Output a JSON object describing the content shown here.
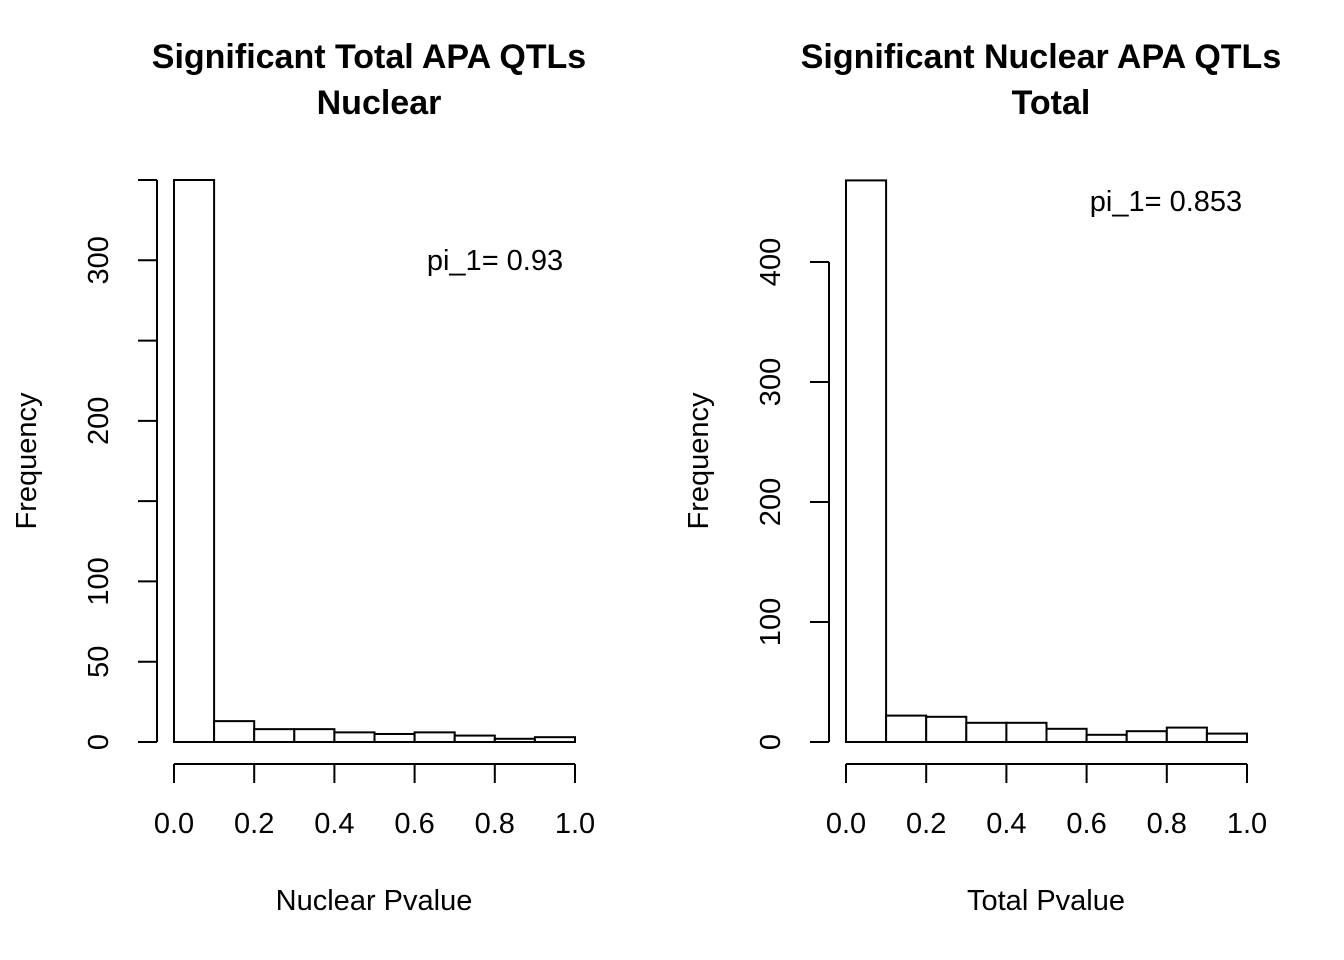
{
  "chart_data": [
    {
      "type": "bar",
      "title": "Significant Total APA QTLs",
      "subtitle": "Nuclear",
      "xlabel": "Nuclear Pvalue",
      "ylabel": "Frequency",
      "annotation": "pi_1= 0.93",
      "bin_edges": [
        0.0,
        0.1,
        0.2,
        0.3,
        0.4,
        0.5,
        0.6,
        0.7,
        0.8,
        0.9,
        1.0
      ],
      "values": [
        350,
        13,
        8,
        8,
        6,
        5,
        6,
        4,
        2,
        3
      ],
      "xlim": [
        0.0,
        1.0
      ],
      "ylim": [
        0,
        350
      ],
      "x_ticks": [
        0.0,
        0.2,
        0.4,
        0.6,
        0.8,
        1.0
      ],
      "x_tick_labels": [
        "0.0",
        "0.2",
        "0.4",
        "0.6",
        "0.8",
        "1.0"
      ],
      "y_ticks": [
        0,
        50,
        100,
        150,
        200,
        250,
        300,
        350
      ],
      "y_tick_labels": [
        "0",
        "50",
        "100",
        "",
        "200",
        "",
        "300",
        ""
      ]
    },
    {
      "type": "bar",
      "title": "Significant Nuclear APA QTLs",
      "subtitle": "Total",
      "xlabel": "Total Pvalue",
      "ylabel": "Frequency",
      "annotation": "pi_1= 0.853",
      "bin_edges": [
        0.0,
        0.1,
        0.2,
        0.3,
        0.4,
        0.5,
        0.6,
        0.7,
        0.8,
        0.9,
        1.0
      ],
      "values": [
        468,
        22,
        21,
        16,
        16,
        11,
        6,
        9,
        12,
        7
      ],
      "xlim": [
        0.0,
        1.0
      ],
      "ylim": [
        0,
        400
      ],
      "x_ticks": [
        0.0,
        0.2,
        0.4,
        0.6,
        0.8,
        1.0
      ],
      "x_tick_labels": [
        "0.0",
        "0.2",
        "0.4",
        "0.6",
        "0.8",
        "1.0"
      ],
      "y_ticks": [
        0,
        100,
        200,
        300,
        400
      ],
      "y_tick_labels": [
        "0",
        "100",
        "200",
        "300",
        "400"
      ]
    }
  ]
}
